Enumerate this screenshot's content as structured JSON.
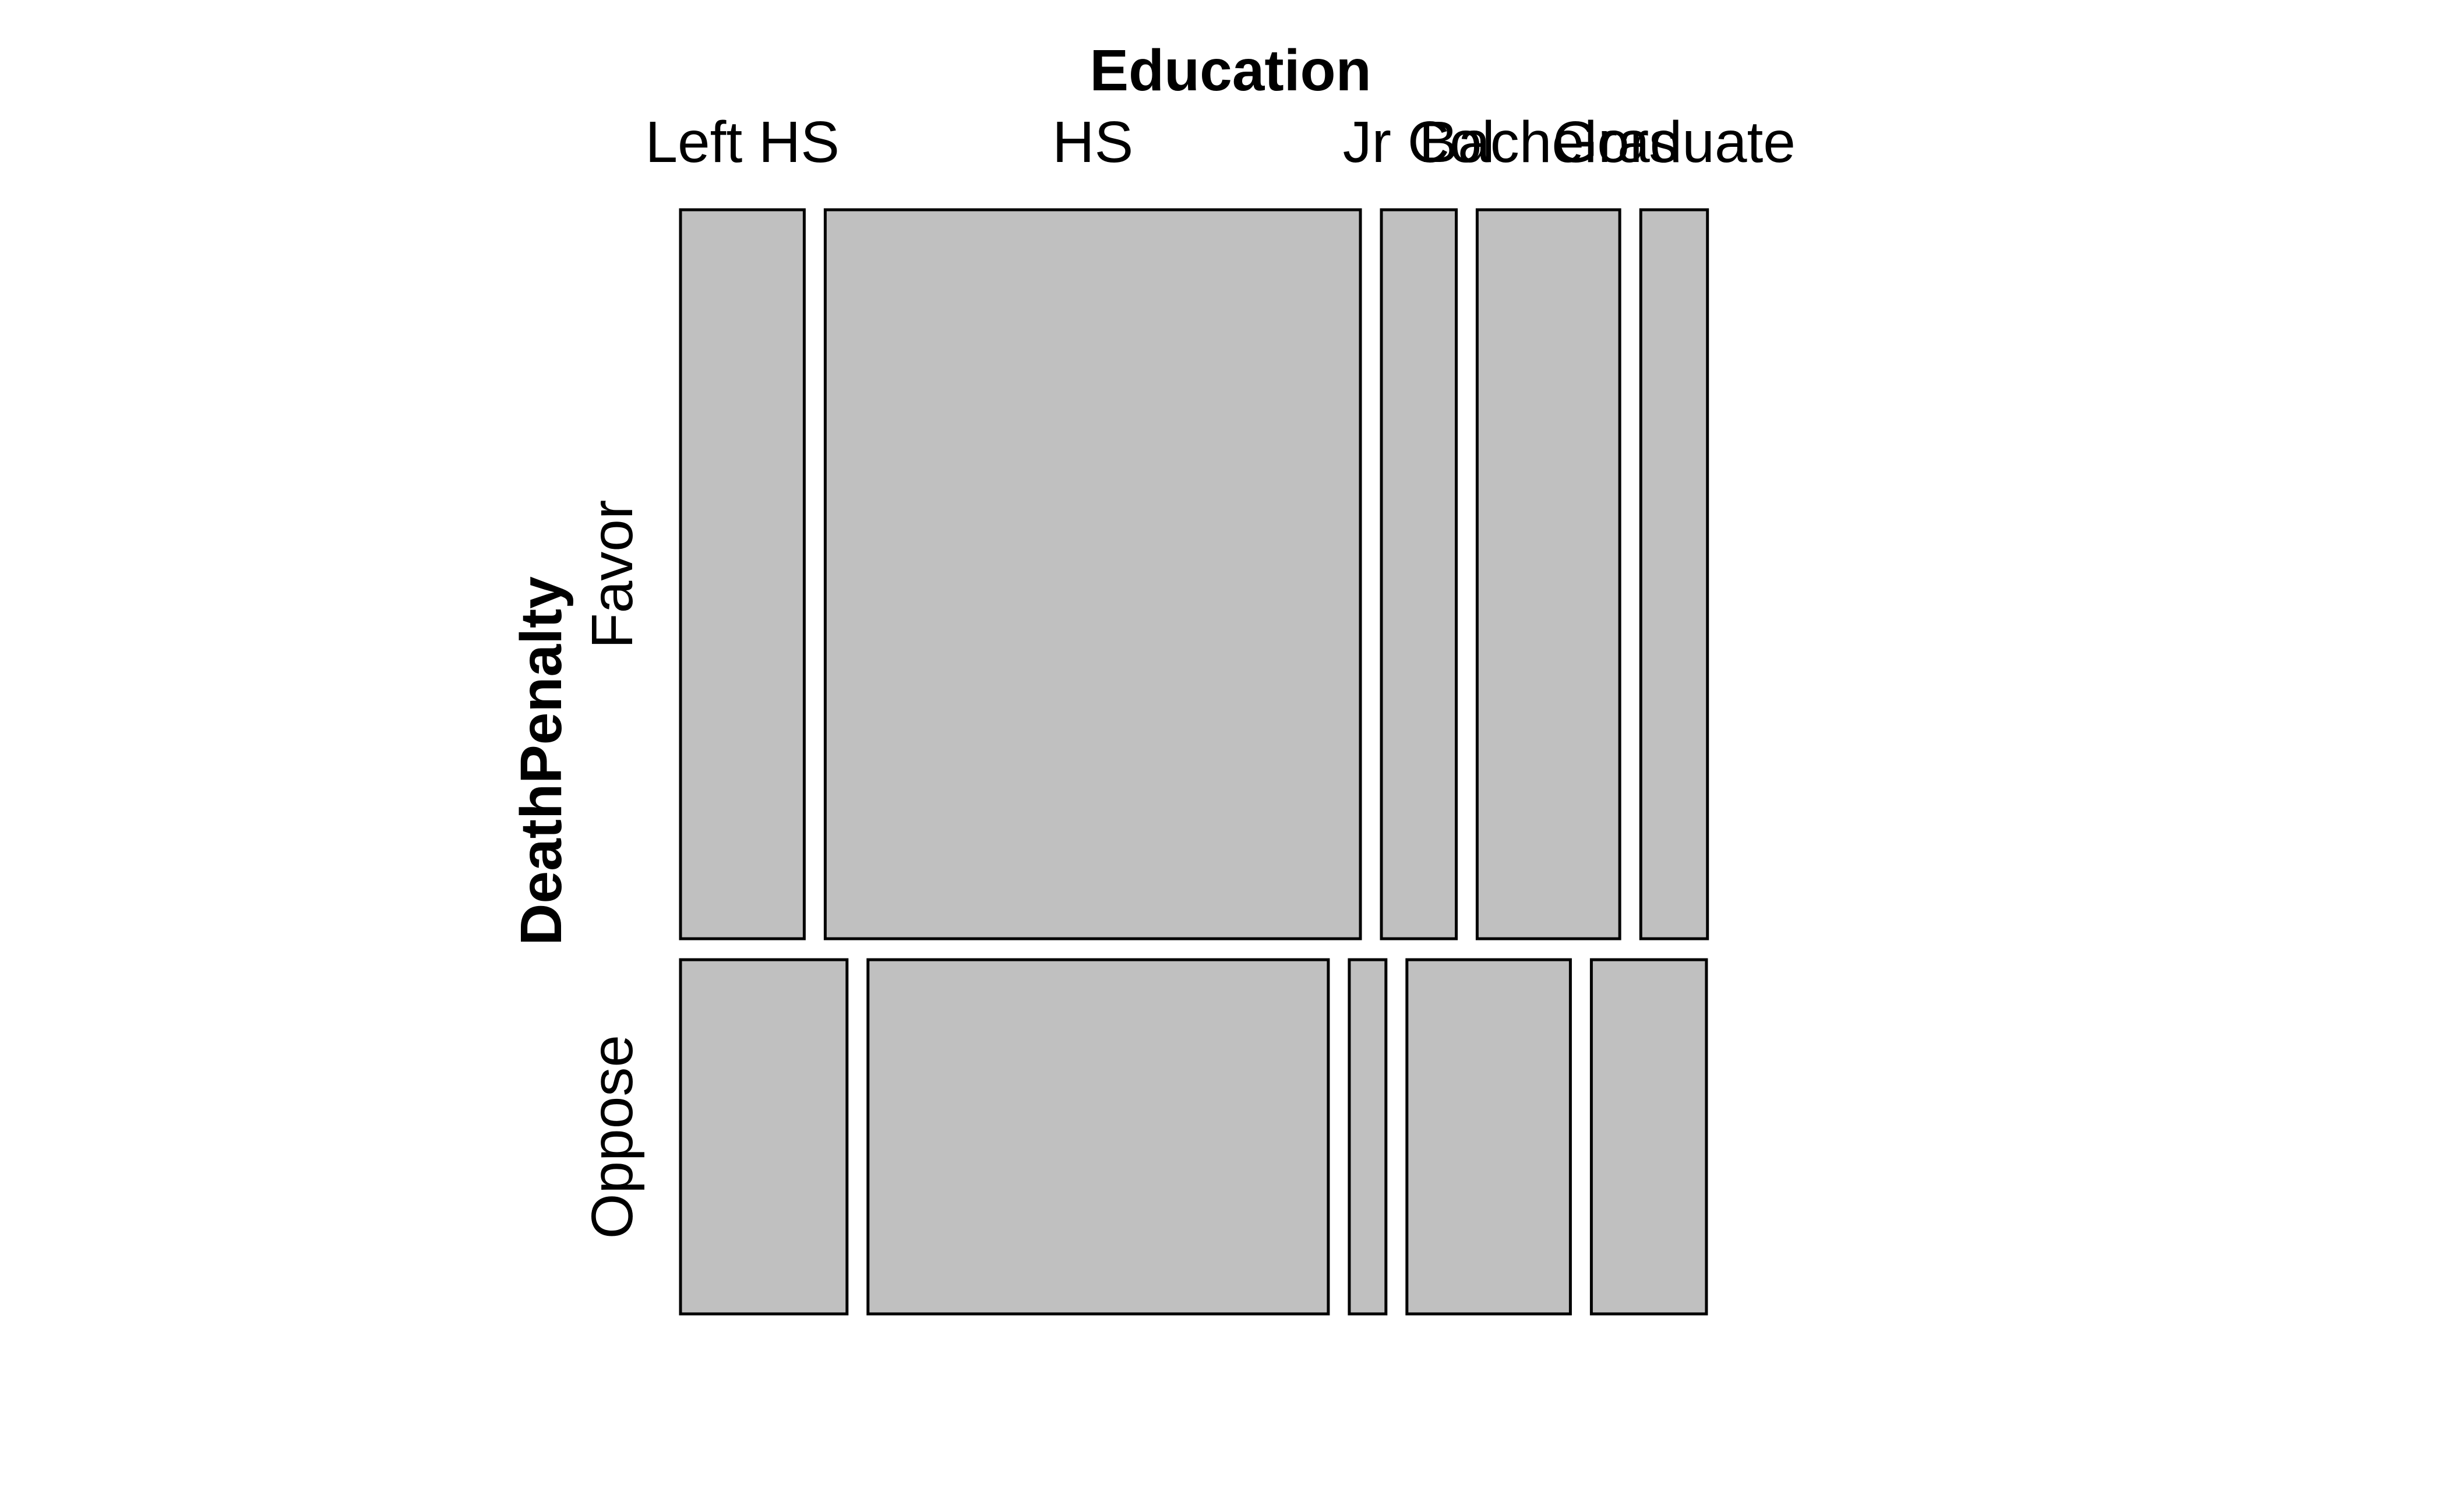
{
  "chart_data": {
    "type": "mosaic",
    "x_variable": "Education",
    "y_variable": "DeathPenalty",
    "x_categories": [
      "Left HS",
      "HS",
      "Jr Col",
      "Bachelors",
      "Graduate"
    ],
    "y_categories": [
      "Favor",
      "Oppose"
    ],
    "row_proportions": [
      0.673,
      0.327
    ],
    "cells": {
      "Favor": [
        0.1215,
        0.5255,
        0.0735,
        0.14,
        0.0655
      ],
      "Oppose": [
        0.1635,
        0.452,
        0.036,
        0.1605,
        0.113
      ]
    },
    "colors": {
      "tile_fill": "#c0c0c0",
      "tile_border": "#000000"
    }
  }
}
